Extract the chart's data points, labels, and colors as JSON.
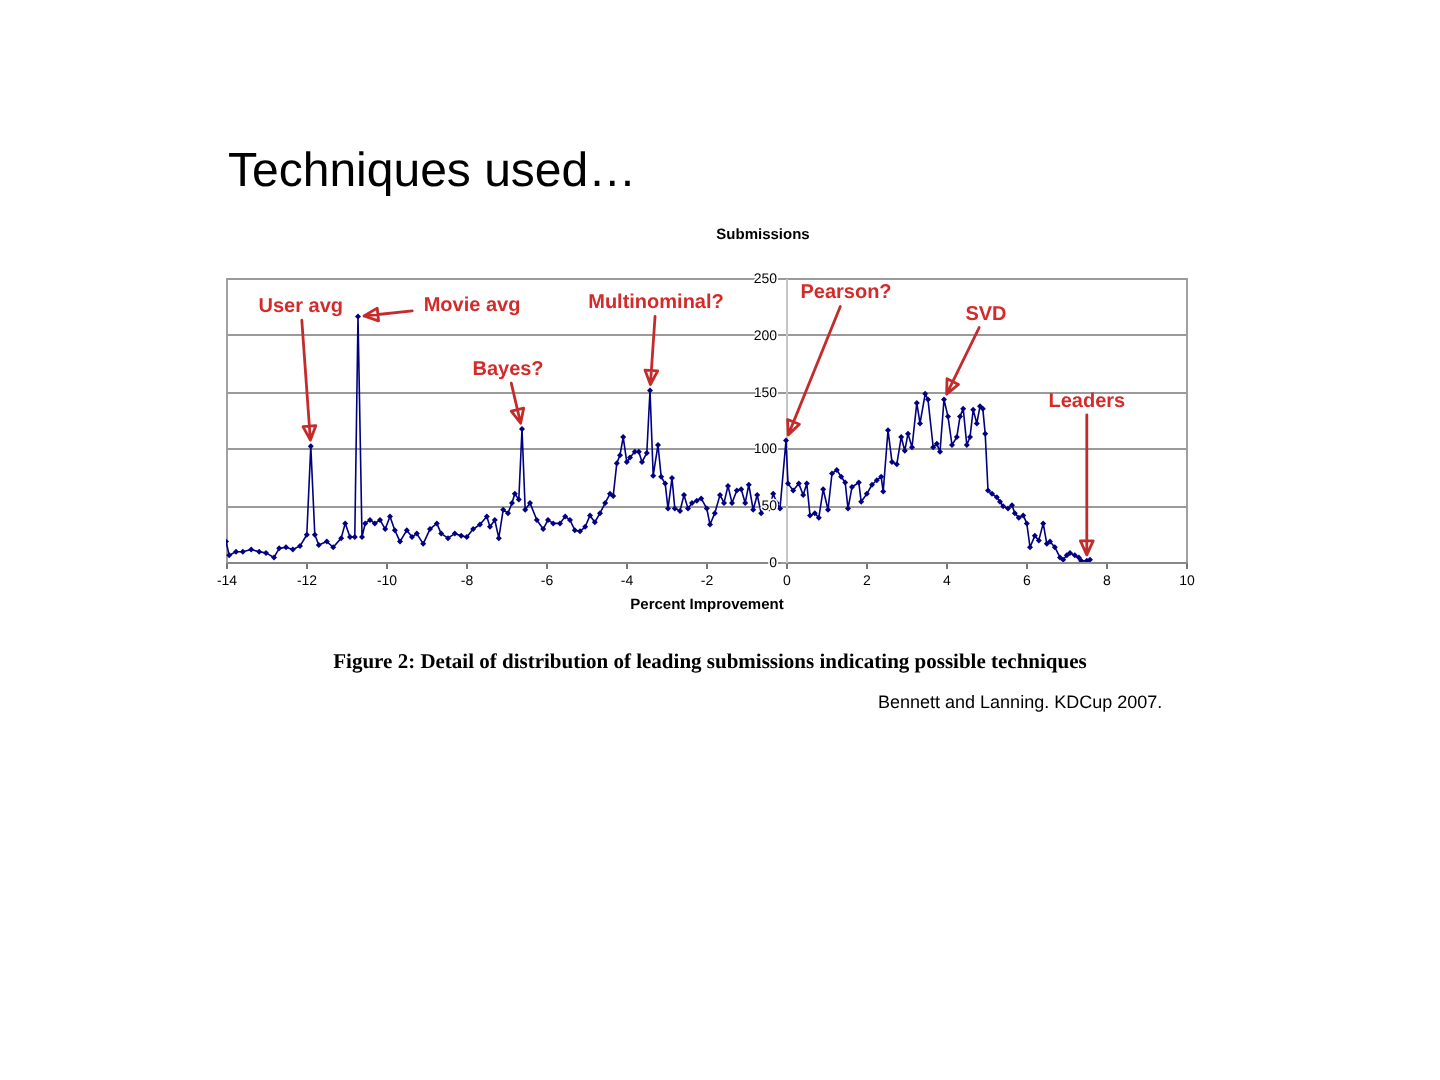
{
  "chart_data": {
    "type": "line",
    "title": "Techniques used…",
    "xlabel": "Percent Improvement",
    "ylabel": "Submissions",
    "color": "#000080",
    "marker": "diamond",
    "grid": "y",
    "xlim": [
      -14,
      10
    ],
    "ylim": [
      0,
      250
    ],
    "xticks": [
      -14,
      -12,
      -10,
      -8,
      -6,
      -4,
      -2,
      0,
      2,
      4,
      6,
      8,
      10
    ],
    "yticks": [
      0,
      50,
      100,
      150,
      200,
      250
    ],
    "x": [
      -14,
      -13.92,
      -13.75,
      -13.58,
      -13.37,
      -13.17,
      -13,
      -12.8,
      -12.67,
      -12.5,
      -12.33,
      -12.15,
      -11.98,
      -11.88,
      -11.78,
      -11.68,
      -11.48,
      -11.32,
      -11.12,
      -11.02,
      -10.9,
      -10.78,
      -10.7,
      -10.6,
      -10.52,
      -10.4,
      -10.28,
      -10.15,
      -10.02,
      -9.9,
      -9.78,
      -9.65,
      -9.48,
      -9.35,
      -9.23,
      -9.07,
      -8.9,
      -8.73,
      -8.62,
      -8.45,
      -8.28,
      -8.12,
      -7.98,
      -7.82,
      -7.65,
      -7.48,
      -7.4,
      -7.28,
      -7.18,
      -7.07,
      -6.95,
      -6.85,
      -6.78,
      -6.68,
      -6.6,
      -6.52,
      -6.4,
      -6.23,
      -6.07,
      -5.95,
      -5.82,
      -5.65,
      -5.52,
      -5.4,
      -5.28,
      -5.15,
      -5.02,
      -4.9,
      -4.78,
      -4.65,
      -4.52,
      -4.4,
      -4.32,
      -4.23,
      -4.15,
      -4.07,
      -3.98,
      -3.9,
      -3.78,
      -3.68,
      -3.6,
      -3.48,
      -3.4,
      -3.32,
      -3.2,
      -3.12,
      -3.02,
      -2.95,
      -2.85,
      -2.78,
      -2.65,
      -2.55,
      -2.45,
      -2.35,
      -2.23,
      -2.12,
      -1.98,
      -1.9,
      -1.78,
      -1.65,
      -1.55,
      -1.45,
      -1.35,
      -1.23,
      -1.12,
      -1.02,
      -0.93,
      -0.82,
      -0.72,
      -0.62,
      -0.52,
      -0.42,
      -0.32,
      -0.23,
      -0.15,
      0,
      0.05,
      0.18,
      0.32,
      0.43,
      0.52,
      0.6,
      0.72,
      0.82,
      0.93,
      1.05,
      1.15,
      1.27,
      1.38,
      1.48,
      1.55,
      1.65,
      1.82,
      1.88,
      2.02,
      2.15,
      2.27,
      2.38,
      2.43,
      2.55,
      2.65,
      2.77,
      2.88,
      2.97,
      3.05,
      3.15,
      3.27,
      3.35,
      3.48,
      3.55,
      3.68,
      3.77,
      3.85,
      3.95,
      4.05,
      4.15,
      4.27,
      4.35,
      4.43,
      4.52,
      4.6,
      4.68,
      4.77,
      4.85,
      4.92,
      4.98,
      5.05,
      5.15,
      5.27,
      5.35,
      5.43,
      5.55,
      5.65,
      5.72,
      5.82,
      5.93,
      6.02,
      6.1,
      6.22,
      6.32,
      6.43,
      6.52,
      6.6,
      6.72,
      6.85,
      6.93,
      7.02,
      7.1,
      7.22,
      7.32,
      7.38,
      7.52,
      7.6
    ],
    "values": [
      18,
      6,
      9,
      9,
      11,
      9,
      8,
      4,
      12,
      13,
      11,
      14,
      24,
      102,
      24,
      15,
      18,
      13,
      21,
      34,
      22,
      22,
      216,
      22,
      34,
      37,
      34,
      37,
      29,
      40,
      28,
      18,
      28,
      22,
      25,
      16,
      29,
      34,
      25,
      21,
      25,
      23,
      22,
      29,
      33,
      40,
      31,
      37,
      21,
      46,
      43,
      52,
      60,
      55,
      117,
      46,
      52,
      37,
      29,
      37,
      34,
      34,
      40,
      37,
      28,
      27,
      31,
      41,
      35,
      43,
      52,
      60,
      58,
      87,
      94,
      110,
      88,
      92,
      97,
      97,
      88,
      96,
      151,
      76,
      103,
      75,
      69,
      47,
      74,
      47,
      45,
      59,
      47,
      52,
      54,
      56,
      47,
      33,
      43,
      59,
      52,
      67,
      52,
      63,
      64,
      52,
      68,
      46,
      59,
      43,
      52,
      47,
      60,
      52,
      47,
      107,
      69,
      63,
      69,
      59,
      69,
      41,
      43,
      39,
      64,
      46,
      78,
      81,
      75,
      70,
      47,
      66,
      70,
      53,
      60,
      68,
      72,
      75,
      62,
      116,
      88,
      86,
      110,
      98,
      113,
      101,
      140,
      122,
      148,
      143,
      101,
      104,
      97,
      143,
      128,
      103,
      110,
      128,
      135,
      103,
      110,
      134,
      122,
      137,
      135,
      113,
      63,
      60,
      57,
      53,
      49,
      47,
      50,
      43,
      39,
      41,
      34,
      13,
      23,
      19,
      34,
      16,
      18,
      13,
      4,
      2,
      6,
      8,
      6,
      4,
      1,
      1,
      2
    ],
    "annotations": [
      {
        "text": "User avg",
        "x": -11.88,
        "y": 102
      },
      {
        "text": "Movie avg",
        "x": -10.7,
        "y": 216
      },
      {
        "text": "Bayes?",
        "x": -6.6,
        "y": 117
      },
      {
        "text": "Multinominal?",
        "x": -3.4,
        "y": 151
      },
      {
        "text": "Pearson?",
        "x": 0,
        "y": 107
      },
      {
        "text": "SVD",
        "x": 3.95,
        "y": 143
      },
      {
        "text": "Leaders",
        "x": 7.52,
        "y": 1
      },
      "Figure 2: Detail of distribution of leading submissions indicating possible techniques",
      "Bennett and Lanning. KDCup 2007."
    ]
  }
}
